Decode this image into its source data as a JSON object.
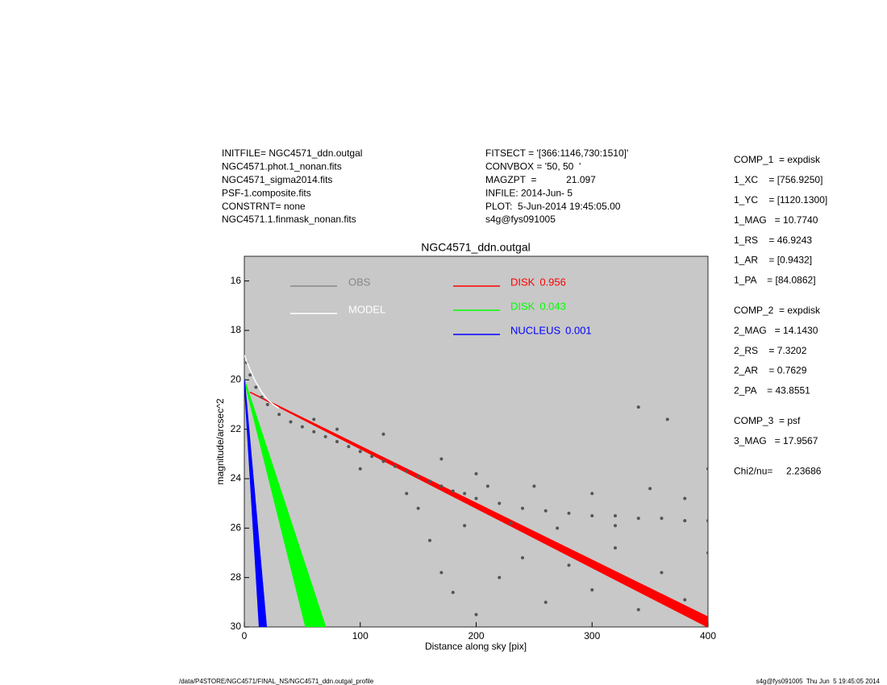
{
  "chart_data": {
    "type": "scatter",
    "title": "NGC4571_ddn.outgal",
    "xlabel": "Distance along sky [pix]",
    "ylabel": "magnitude/arcsec^2",
    "xlim": [
      0,
      400
    ],
    "ylim": [
      30,
      15
    ],
    "xticks": [
      0,
      100,
      200,
      300,
      400
    ],
    "yticks": [
      16,
      18,
      20,
      22,
      24,
      26,
      28,
      30
    ],
    "background": "#c8c8c8",
    "series": [
      {
        "name": "OBS",
        "color": "#555555",
        "legend_color": "#888888",
        "x": [
          2,
          5,
          10,
          15,
          20,
          30,
          40,
          50,
          60,
          70,
          80,
          90,
          100,
          110,
          120,
          130,
          140,
          150,
          160,
          170,
          180,
          190,
          200,
          220,
          240,
          260,
          280,
          300,
          320,
          340,
          360,
          380,
          400,
          160,
          170,
          180,
          200,
          220,
          240,
          260,
          280,
          300,
          320,
          340,
          360,
          380,
          400,
          150,
          200,
          250,
          300,
          350,
          400,
          380,
          320,
          270,
          230,
          190,
          120,
          80,
          60,
          365,
          340,
          100,
          140,
          210,
          170
        ],
        "values": [
          19.3,
          19.8,
          20.3,
          20.7,
          21.0,
          21.4,
          21.7,
          21.9,
          22.1,
          22.3,
          22.5,
          22.7,
          22.9,
          23.1,
          23.3,
          23.5,
          23.7,
          23.9,
          24.1,
          24.3,
          24.5,
          24.6,
          24.8,
          25.0,
          25.2,
          25.3,
          25.4,
          25.5,
          25.5,
          25.6,
          25.6,
          25.7,
          25.7,
          26.5,
          27.8,
          28.6,
          29.5,
          28.0,
          27.2,
          29.0,
          27.5,
          28.5,
          26.8,
          29.3,
          27.8,
          28.9,
          27.0,
          25.2,
          23.8,
          24.3,
          24.6,
          24.4,
          23.6,
          24.8,
          25.9,
          26.0,
          25.8,
          25.9,
          22.2,
          22.0,
          21.6,
          21.6,
          21.1,
          23.6,
          24.6,
          24.3,
          23.2
        ]
      },
      {
        "name": "MODEL",
        "color": "#ffffff",
        "x": [
          0,
          5,
          10,
          15,
          20,
          25,
          30
        ],
        "values": [
          19.0,
          19.6,
          20.1,
          20.5,
          20.8,
          21.0,
          21.15
        ]
      }
    ],
    "components": [
      {
        "name": "DISK",
        "fraction": 0.956,
        "color": "#ff0000",
        "x": [
          5,
          400,
          400
        ],
        "values": [
          20.5,
          29.6,
          30
        ]
      },
      {
        "name": "DISK",
        "fraction": 0.043,
        "color": "#00ff00",
        "x": [
          0,
          53,
          70
        ],
        "values": [
          20,
          30,
          30
        ]
      },
      {
        "name": "NUCLEUS",
        "fraction": 0.001,
        "color": "#0000ff",
        "x": [
          0,
          13,
          19
        ],
        "values": [
          20,
          30,
          30
        ]
      }
    ]
  },
  "header_left": [
    "INITFILE= NGC4571_ddn.outgal",
    "NGC4571.phot.1_nonan.fits",
    "NGC4571_sigma2014.fits",
    "PSF-1.composite.fits",
    "CONSTRNT= none",
    "NGC4571.1.finmask_nonan.fits"
  ],
  "header_right": [
    "FITSECT = '[366:1146,730:1510]'",
    "CONVBOX = '50, 50  '",
    "MAGZPT  =           21.097",
    "INFILE: 2014-Jun- 5",
    "PLOT:  5-Jun-2014 19:45:05.00",
    "s4g@fys091005"
  ],
  "parameters": [
    [
      "COMP_1  = expdisk",
      "1_XC    = [756.9250]",
      "1_YC    = [1120.1300]",
      "1_MAG   = 10.7740",
      "1_RS    = 46.9243",
      "1_AR    = [0.9432]",
      "1_PA    = [84.0862]"
    ],
    [
      "COMP_2  = expdisk",
      "2_MAG   = 14.1430",
      "2_RS    = 7.3202",
      "2_AR    = 0.7629",
      "2_PA    = 43.8551"
    ],
    [
      "COMP_3  = psf",
      "3_MAG   = 17.9567"
    ],
    [
      "Chi2/nu=     2.23686"
    ]
  ],
  "footer": {
    "left": "/data/P4STORE/NGC4571/FINAL_NS/NGC4571_ddn.outgal_profile",
    "right": "s4g@fys091005  Thu Jun  5 19:45:05 2014"
  }
}
